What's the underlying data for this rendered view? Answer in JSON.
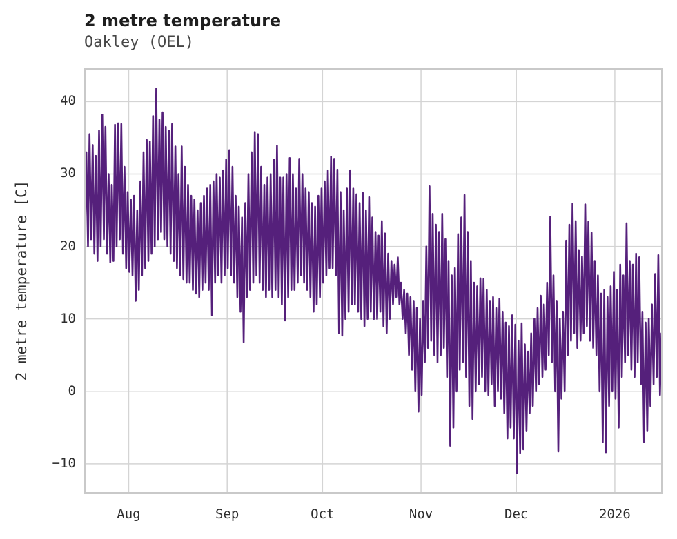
{
  "chart_data": {
    "type": "line",
    "title": "2 metre temperature",
    "subtitle": "Oakley (OEL)",
    "ylabel": "2 metre temperature [C]",
    "xlabel": "",
    "legend": "none",
    "grid": "on",
    "line_color": "#55207b",
    "grid_color": "#d4d4d4",
    "spine_color": "#c9c9c9",
    "background_color": "#ffffff",
    "ylim": [
      -14.1,
      44.6
    ],
    "x_domain_days": [
      0,
      182
    ],
    "y_tick_values": [
      40,
      30,
      20,
      10,
      0,
      -10
    ],
    "y_tick_labels": [
      "40",
      "30",
      "20",
      "10",
      "0",
      "−10"
    ],
    "x_ticks": [
      {
        "label": "Aug",
        "day": 14
      },
      {
        "label": "Sep",
        "day": 45
      },
      {
        "label": "Oct",
        "day": 75
      },
      {
        "label": "Nov",
        "day": 106
      },
      {
        "label": "Dec",
        "day": 136
      },
      {
        "label": "2026",
        "day": 167
      }
    ],
    "series": [
      {
        "name": "2 metre temperature",
        "x_unit": "day_index_from_plot_left_edge",
        "daily_min": [
          19,
          20,
          21,
          19,
          18,
          20,
          21,
          19,
          17.8,
          18,
          20,
          21,
          19,
          17,
          16.5,
          16,
          12.5,
          14,
          16,
          17,
          18,
          19,
          20,
          21,
          22,
          21,
          20,
          19,
          18,
          17,
          16,
          15.5,
          15,
          15,
          14,
          13.5,
          13,
          14,
          15,
          14,
          10.5,
          15,
          16,
          15,
          16,
          17,
          16,
          15,
          13,
          11,
          6.8,
          13,
          14,
          15,
          16,
          15,
          14,
          13,
          14,
          13,
          14,
          13,
          12,
          9.8,
          13,
          14,
          14,
          15,
          16,
          15,
          14,
          13,
          11,
          12,
          13,
          15,
          16,
          17,
          17,
          16,
          8,
          7.7,
          10,
          11,
          12,
          12,
          11,
          10,
          9,
          10,
          11,
          10,
          10,
          11,
          9,
          8,
          10,
          12,
          13,
          12,
          10,
          8,
          5,
          3,
          0,
          -2.8,
          -0.5,
          4,
          6,
          7,
          5,
          4,
          5,
          6,
          2,
          -7.5,
          -5,
          0,
          3,
          4,
          2,
          -2,
          -3.8,
          0,
          1,
          2,
          0,
          -0.5,
          1,
          -2,
          0,
          -1,
          -3,
          -6.5,
          -5,
          -6.5,
          -11.3,
          -8.5,
          -8,
          -5.5,
          -3,
          -2,
          0,
          1,
          2,
          3,
          5,
          4,
          0,
          -8.3,
          -1,
          0,
          5,
          7,
          8,
          6,
          7,
          8,
          9,
          7,
          6,
          5,
          0,
          -7,
          -8.4,
          -2,
          0,
          -1,
          -5,
          2,
          4,
          5,
          3,
          2,
          4,
          1,
          -7,
          -5.5,
          -2,
          1,
          2,
          -0.5
        ],
        "daily_max": [
          33,
          35.5,
          34,
          32.5,
          36,
          38.2,
          36.5,
          30,
          28.5,
          36.8,
          37,
          36.9,
          31,
          27.5,
          26.5,
          27,
          25,
          29,
          33,
          34.7,
          34.5,
          38,
          41.8,
          37.5,
          38.5,
          36.5,
          36,
          36.9,
          33.8,
          30,
          33.8,
          31,
          28.5,
          27,
          26.5,
          25,
          26,
          27,
          28,
          28.5,
          29,
          30,
          29.5,
          30.5,
          32,
          33.3,
          31,
          27,
          25.5,
          24,
          26,
          30,
          33,
          35.8,
          35.5,
          31,
          28.5,
          29.5,
          30,
          32,
          33.9,
          29.5,
          29.5,
          30,
          32.2,
          30,
          28,
          32.1,
          30,
          28,
          27.5,
          26,
          25.5,
          27,
          28,
          29,
          30.5,
          32.4,
          32.1,
          30.6,
          27.5,
          25,
          28,
          30.5,
          28,
          27.2,
          26,
          27.4,
          25,
          26.8,
          24,
          22,
          21.5,
          23.5,
          21.8,
          19,
          18,
          17.5,
          18.5,
          15,
          14,
          13.5,
          13,
          12.5,
          11.5,
          10,
          12.5,
          20,
          28.3,
          24.5,
          23,
          22,
          24.5,
          21,
          18,
          16,
          17,
          21.7,
          24,
          27.1,
          22,
          18,
          15,
          14.5,
          15.6,
          15.5,
          14,
          12.5,
          13,
          11.5,
          12.8,
          11,
          9.5,
          9,
          10.5,
          9.2,
          7,
          9.4,
          6.5,
          5.5,
          8,
          10,
          11.5,
          13.2,
          12,
          15,
          24.1,
          16,
          12.5,
          10,
          11,
          20.8,
          23,
          25.9,
          23.5,
          19.5,
          18.6,
          25.8,
          23.4,
          21.9,
          18,
          16,
          13.5,
          14,
          13,
          14.5,
          16.5,
          14,
          17.5,
          16,
          23.2,
          18,
          17.5,
          19,
          18.5,
          11,
          9.5,
          10,
          12,
          16.2,
          18.8,
          8
        ],
        "end_value": -0.5
      }
    ]
  }
}
